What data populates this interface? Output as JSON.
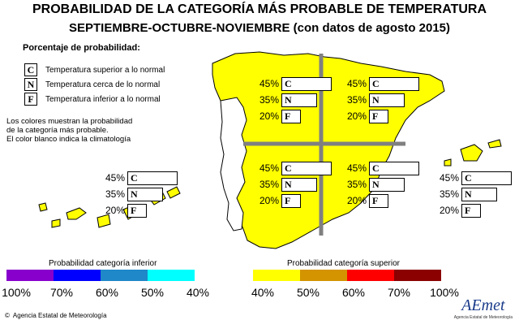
{
  "title": "PROBABILIDAD DE LA CATEGORÍA MÁS PROBABLE DE TEMPERATURA",
  "subtitle": "SEPTIEMBRE-OCTUBRE-NOVIEMBRE (con datos de agosto 2015)",
  "legend": {
    "heading": "Porcentaje de probabilidad:",
    "items": [
      {
        "letter": "C",
        "label": "Temperatura superior a lo normal"
      },
      {
        "letter": "N",
        "label": "Temperatura cerca de lo normal"
      },
      {
        "letter": "F",
        "label": "Temperatura inferior a lo normal"
      }
    ],
    "note_lines": [
      "Los colores muestran la probabilidad",
      "de la categoría más probable.",
      "El color blanco indica la climatología"
    ]
  },
  "regions": [
    {
      "id": "nw",
      "C": "45%",
      "N": "35%",
      "F": "20%",
      "fill": "#ffff00"
    },
    {
      "id": "ne",
      "C": "45%",
      "N": "35%",
      "F": "20%",
      "fill": "#ffff00"
    },
    {
      "id": "sw",
      "C": "45%",
      "N": "35%",
      "F": "20%",
      "fill": "#ffff00"
    },
    {
      "id": "se",
      "C": "45%",
      "N": "35%",
      "F": "20%",
      "fill": "#ffff00"
    },
    {
      "id": "canarias",
      "C": "45%",
      "N": "35%",
      "F": "20%",
      "fill": "#ffff00"
    },
    {
      "id": "baleares",
      "C": "45%",
      "N": "35%",
      "F": "20%",
      "fill": "#ffff00"
    }
  ],
  "scale_inferior": {
    "label": "Probabilidad categoría inferior",
    "colors": [
      "#8800cc",
      "#0000ff",
      "#1e88c8",
      "#00ffff"
    ],
    "ticks": [
      "100%",
      "70%",
      "60%",
      "50%",
      "40%"
    ]
  },
  "scale_superior": {
    "label": "Probabilidad categoría superior",
    "colors": [
      "#ffff00",
      "#d49400",
      "#ff0000",
      "#8b0000"
    ],
    "ticks": [
      "40%",
      "50%",
      "60%",
      "70%",
      "100%"
    ]
  },
  "agency": "Agencia Estatal de Meteorología",
  "logo": {
    "text": "AEmet",
    "sub": "Agencia Estatal de Meteorología"
  },
  "colors": {
    "land": "#ffff00",
    "divider": "#808080",
    "outline": "#000000"
  }
}
